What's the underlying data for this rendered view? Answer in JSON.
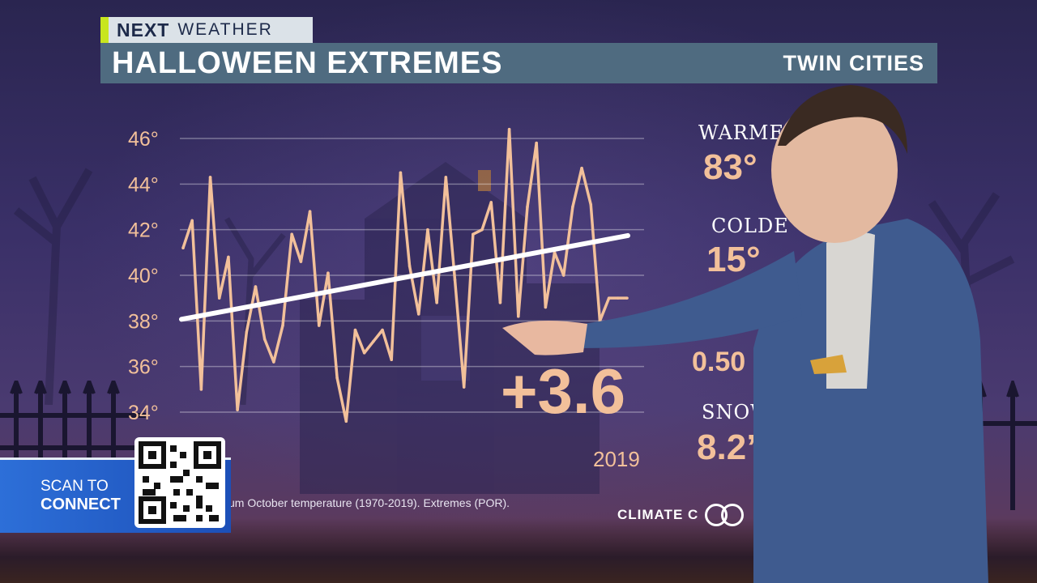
{
  "brand": {
    "logo_text": "NEXT",
    "section": "WEATHER"
  },
  "header": {
    "title": "HALLOWEEN EXTREMES",
    "location": "TWIN CITIES"
  },
  "stats": [
    {
      "label": "WARME",
      "value": "83°"
    },
    {
      "label": "COLDE",
      "value": "15°"
    },
    {
      "label": "",
      "value": "0.50"
    },
    {
      "label": "SNOW",
      "value": "8.2”"
    }
  ],
  "trend": {
    "value": "+3.6",
    "end_year": "2019"
  },
  "footnote": "um October temperature (1970-2019). Extremes (POR).",
  "credit": "CLIMATE C",
  "scan": {
    "line1": "SCAN TO",
    "line2": "CONNECT"
  },
  "colors": {
    "line": "#f2c09a",
    "trend": "#ffffff",
    "bar": "#4f6b80",
    "accent": "#c8e61e",
    "scan": "#2d6fd8"
  },
  "chart_data": {
    "type": "line",
    "ylim": [
      33,
      47
    ],
    "yticks": [
      34,
      36,
      38,
      40,
      42,
      44,
      46
    ],
    "ytick_labels": [
      "34°",
      "36°",
      "38°",
      "40°",
      "42°",
      "44°",
      "46°"
    ],
    "grid": true,
    "x": [
      1970,
      1971,
      1972,
      1973,
      1974,
      1975,
      1976,
      1977,
      1978,
      1979,
      1980,
      1981,
      1982,
      1983,
      1984,
      1985,
      1986,
      1987,
      1988,
      1989,
      1990,
      1991,
      1992,
      1993,
      1994,
      1995,
      1996,
      1997,
      1998,
      1999,
      2000,
      2001,
      2002,
      2003,
      2004,
      2005,
      2006,
      2007,
      2008,
      2009,
      2010,
      2011,
      2012,
      2013,
      2014,
      2015,
      2016,
      2017,
      2018,
      2019
    ],
    "series": [
      {
        "values": [
          41.2,
          42.4,
          35.0,
          44.3,
          39.0,
          40.8,
          34.1,
          37.5,
          39.5,
          37.2,
          36.2,
          37.8,
          41.8,
          40.6,
          42.8,
          37.8,
          40.1,
          35.5,
          33.6,
          37.6,
          36.6,
          37.1,
          37.6,
          36.3,
          44.5,
          40.4,
          38.3,
          42.0,
          38.8,
          44.3,
          39.8,
          35.1,
          41.8,
          42.0,
          43.2,
          38.8,
          46.4,
          38.2,
          43.0,
          45.8,
          38.6,
          41.0,
          40.0,
          43.0,
          44.7,
          43.1,
          38.0,
          39.0,
          39.0,
          39.0
        ]
      }
    ],
    "trend_line": {
      "start": 38.0,
      "end": 41.6
    }
  }
}
